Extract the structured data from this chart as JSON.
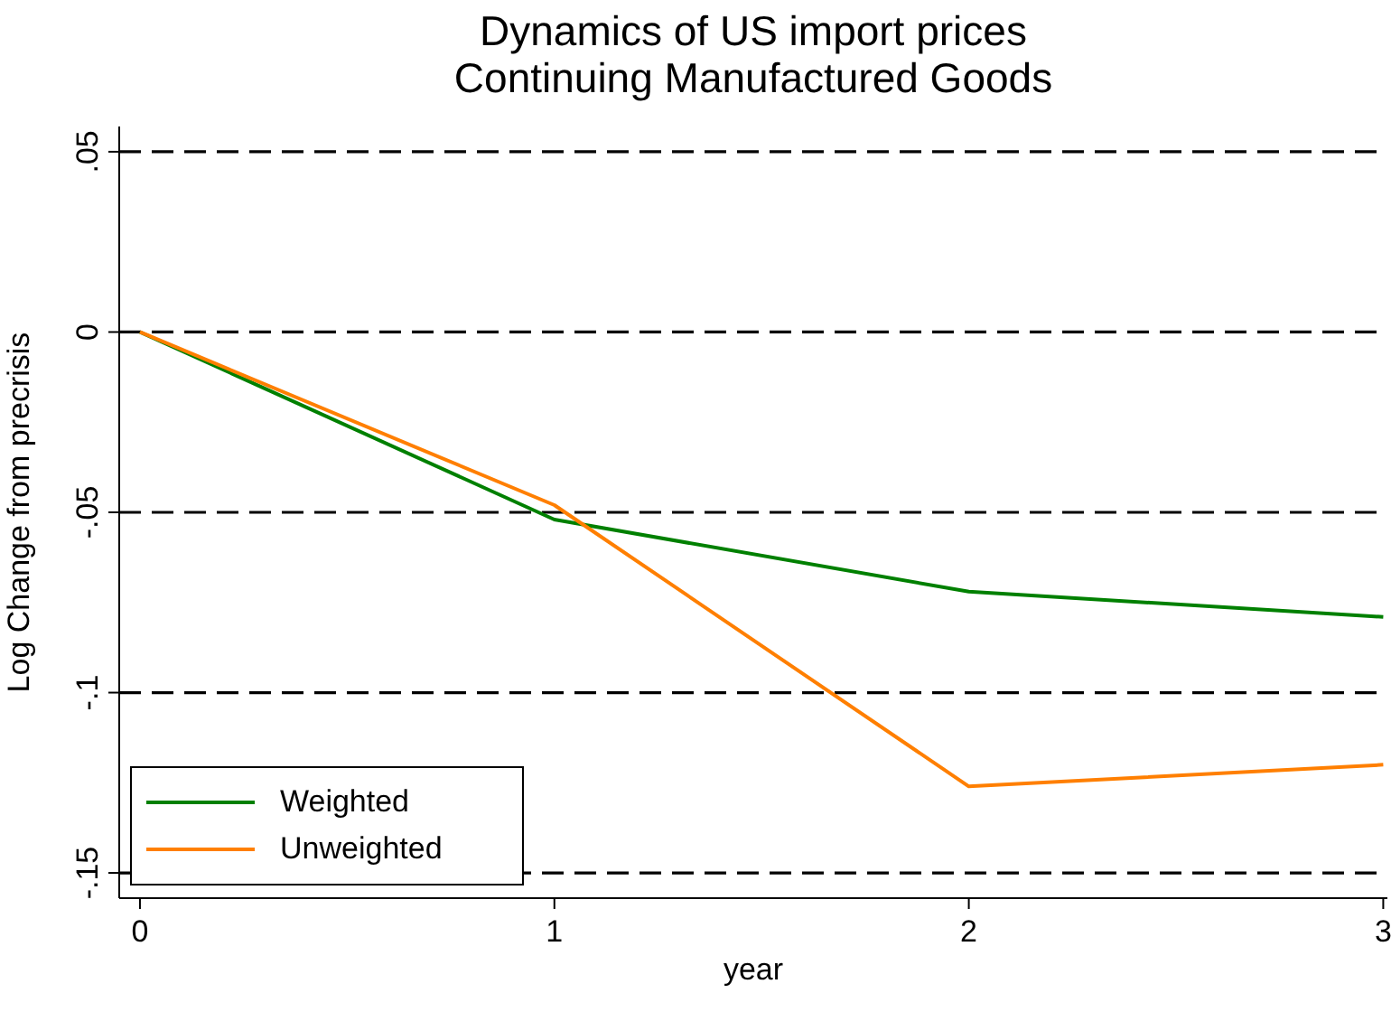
{
  "chart_data": {
    "type": "line",
    "title": "Dynamics of US import prices",
    "subtitle": "Continuing Manufactured Goods",
    "xlabel": "year",
    "ylabel": "Log Change from precrisis",
    "x": [
      0,
      1,
      2,
      3
    ],
    "series": [
      {
        "name": "Weighted",
        "color": "#008000",
        "values": [
          0,
          -0.052,
          -0.072,
          -0.079
        ]
      },
      {
        "name": "Unweighted",
        "color": "#ff7f00",
        "values": [
          0,
          -0.048,
          -0.126,
          -0.12
        ]
      }
    ],
    "xlim": [
      -0.05,
      3.01
    ],
    "xticks": [
      0,
      1,
      2,
      3
    ],
    "ylim": [
      -0.157,
      0.057
    ],
    "yticks": [
      {
        "value": 0.05,
        "label": ".05"
      },
      0,
      {
        "value": -0.05,
        "label": "-.05"
      },
      {
        "value": -0.1,
        "label": "-.1"
      },
      {
        "value": -0.15,
        "label": "-.15"
      }
    ],
    "grid": "y",
    "legend": "bottom left",
    "marker": "none",
    "line_style": "solid"
  }
}
